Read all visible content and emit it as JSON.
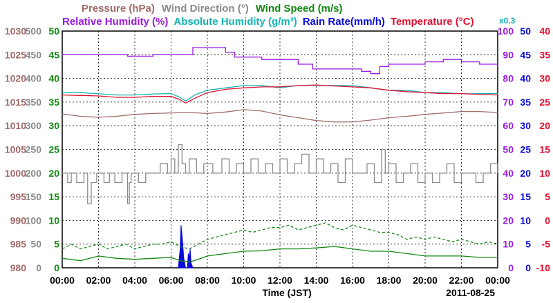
{
  "chart_data": {
    "type": "line",
    "title_parts": [
      {
        "text": "Pressure (hPa)",
        "color": "#a06a6a"
      },
      {
        "text": "Wind Direction (°)",
        "color": "#8a8a8a"
      },
      {
        "text": "Wind Speed (m/s)",
        "color": "#118811"
      }
    ],
    "subtitle_parts": [
      {
        "text": "Relative Humidity (%)",
        "color": "#9a1adf"
      },
      {
        "text": "Absolute Humidity (g/m³)",
        "color": "#14b4b4"
      },
      {
        "text": "Rain Rate(mm/h)",
        "color": "#0a0ad8"
      },
      {
        "text": "Temperature (°C)",
        "color": "#e01030"
      }
    ],
    "rain_scale_note": "x0.3",
    "xlabel": "Time (JST)",
    "date": "2011-08-25",
    "x_ticks": [
      "00:00",
      "02:00",
      "04:00",
      "06:00",
      "08:00",
      "10:00",
      "12:00",
      "14:00",
      "16:00",
      "18:00",
      "20:00",
      "22:00",
      "00:00"
    ],
    "left_axes": [
      {
        "name": "pressure",
        "color": "#a06a6a",
        "ticks": [
          980,
          985,
          990,
          995,
          1000,
          1005,
          1010,
          1015,
          1020,
          1025,
          1030
        ]
      },
      {
        "name": "wind_direction",
        "color": "#8a8a8a",
        "ticks": [
          0,
          50,
          100,
          150,
          200,
          250,
          300,
          350,
          400,
          450,
          500
        ]
      },
      {
        "name": "wind_speed",
        "color": "#118811",
        "ticks": [
          0,
          5,
          10,
          15,
          20,
          25,
          30,
          35,
          40,
          45,
          50
        ]
      }
    ],
    "right_axes": [
      {
        "name": "humidity",
        "color": "#9a1adf",
        "ticks": [
          0,
          10,
          20,
          30,
          40,
          50,
          60,
          70,
          80,
          90,
          100
        ]
      },
      {
        "name": "rain_rate",
        "color": "#0a0ad8",
        "ticks": [
          0,
          5,
          10,
          15,
          20,
          25,
          30,
          35,
          40,
          45,
          50
        ]
      },
      {
        "name": "temperature",
        "color": "#e01030",
        "ticks": [
          -10,
          -5,
          0,
          5,
          10,
          15,
          20,
          25,
          30,
          35,
          40
        ]
      }
    ],
    "series": [
      {
        "key": "relative_humidity",
        "color": "#9a1adf",
        "axis": "humidity",
        "step": true,
        "x": [
          0,
          3.5,
          3.6,
          5,
          6.8,
          7.2,
          8.3,
          9,
          9.5,
          11,
          12,
          13,
          13.8,
          15,
          16,
          16.5,
          17,
          17.5,
          18,
          19,
          20,
          21,
          22,
          23,
          24
        ],
        "y": [
          90,
          90,
          89.4,
          90,
          90,
          93,
          93,
          91,
          89,
          88,
          88,
          86,
          84,
          84,
          84,
          83,
          82,
          85,
          86,
          86,
          87,
          88,
          87,
          86,
          86
        ]
      },
      {
        "key": "absolute_humidity",
        "color": "#14b4b4",
        "axis": "humidity",
        "step": false,
        "x": [
          0,
          1,
          2,
          3,
          4,
          5,
          6,
          6.5,
          6.8,
          7.3,
          8,
          9,
          10,
          11,
          12,
          13,
          14,
          15,
          16,
          17,
          18,
          19,
          20,
          21,
          22,
          23,
          24
        ],
        "y": [
          74,
          74,
          73.5,
          73,
          73,
          73.4,
          73.6,
          72,
          70.4,
          73,
          75,
          76,
          77,
          77,
          76,
          77,
          77,
          77,
          77,
          76,
          75,
          75,
          74,
          74,
          73.5,
          73.6,
          73.6
        ]
      },
      {
        "key": "temperature",
        "color": "#e01030",
        "axis": "temperature",
        "step": false,
        "x": [
          0,
          1,
          2,
          3,
          4,
          5,
          6,
          6.5,
          6.8,
          7.3,
          8,
          9,
          10,
          11,
          12,
          13,
          14,
          15,
          16,
          17,
          18,
          19,
          20,
          21,
          22,
          23,
          24
        ],
        "y": [
          26.5,
          26.4,
          26.3,
          26.0,
          26.0,
          26.2,
          26.2,
          25.5,
          24.8,
          25.8,
          27.0,
          27.7,
          28.0,
          28.2,
          28.2,
          28.5,
          28.6,
          28.4,
          28.2,
          28.0,
          27.5,
          27.2,
          27.0,
          26.8,
          26.8,
          26.6,
          26.5
        ]
      },
      {
        "key": "pressure",
        "color": "#a06a6a",
        "axis": "pressure",
        "step": false,
        "x": [
          0,
          1,
          2,
          3,
          4,
          5,
          6,
          7,
          8,
          9,
          10,
          11,
          12,
          13,
          14,
          15,
          16,
          17,
          18,
          19,
          20,
          21,
          22,
          23,
          24
        ],
        "y": [
          1012.5,
          1012,
          1011.8,
          1012,
          1012.4,
          1012.6,
          1012.7,
          1012.8,
          1012.6,
          1012.9,
          1013.4,
          1013.1,
          1012.3,
          1011.7,
          1011.1,
          1010.8,
          1010.8,
          1011.2,
          1011.7,
          1012,
          1012.4,
          1012.7,
          1013,
          1013,
          1012.8
        ]
      },
      {
        "key": "wind_direction",
        "color": "#8a8a8a",
        "axis": "wind_direction",
        "step": true,
        "x": [
          0,
          0.3,
          0.5,
          0.8,
          1.2,
          1.4,
          1.6,
          1.9,
          2.3,
          2.6,
          2.9,
          3.3,
          3.6,
          3.7,
          3.8,
          4.2,
          4.6,
          5,
          5.4,
          5.8,
          6.0,
          6.2,
          6.4,
          6.6,
          6.8,
          7.0,
          7.4,
          7.8,
          8.3,
          8.8,
          9.2,
          9.6,
          10,
          10.4,
          10.8,
          11.2,
          11.6,
          12,
          12.4,
          12.8,
          13.2,
          13.6,
          14,
          14.4,
          14.8,
          15.2,
          15.6,
          16,
          16.4,
          16.8,
          17.2,
          17.6,
          17.8,
          18,
          18.4,
          18.8,
          19.2,
          19.6,
          20,
          20.4,
          20.8,
          21.2,
          21.6,
          22,
          22.4,
          22.8,
          23.2,
          23.6,
          24
        ],
        "y": [
          200,
          180,
          200,
          180,
          200,
          135,
          180,
          200,
          180,
          200,
          180,
          200,
          135,
          180,
          200,
          180,
          200,
          200,
          220,
          200,
          230,
          200,
          260,
          220,
          200,
          230,
          200,
          220,
          200,
          230,
          200,
          220,
          200,
          230,
          200,
          220,
          200,
          230,
          200,
          220,
          240,
          200,
          230,
          200,
          220,
          180,
          230,
          200,
          200,
          220,
          180,
          250,
          200,
          220,
          180,
          200,
          220,
          180,
          200,
          180,
          200,
          220,
          180,
          200,
          200,
          180,
          200,
          220,
          200
        ]
      },
      {
        "key": "wind_speed_mean",
        "color": "#118811",
        "axis": "wind_speed",
        "step": false,
        "x": [
          0,
          1,
          2,
          3,
          4,
          5,
          6,
          6.5,
          7,
          7.5,
          8,
          9,
          10,
          11,
          12,
          13,
          14,
          15,
          16,
          17,
          18,
          19,
          20,
          21,
          22,
          23,
          24
        ],
        "y": [
          2,
          1.5,
          2.5,
          2,
          1.8,
          2,
          2.2,
          1.5,
          1.2,
          1.8,
          2.5,
          3,
          3.5,
          3.6,
          4,
          4,
          4.2,
          4.5,
          4,
          3.5,
          3.5,
          3,
          2.5,
          2.5,
          2.5,
          2.2,
          2.2
        ]
      },
      {
        "key": "wind_speed_gust",
        "color": "#118811",
        "axis": "wind_speed",
        "step": false,
        "dashed": true,
        "x": [
          0,
          0.5,
          1,
          1.5,
          2,
          2.5,
          3,
          3.5,
          4,
          4.5,
          5,
          5.5,
          6,
          6.5,
          7,
          7.5,
          8,
          8.5,
          9,
          9.5,
          10,
          10.5,
          11,
          11.5,
          12,
          12.5,
          13,
          13.5,
          14,
          14.5,
          15,
          15.5,
          16,
          16.5,
          17,
          17.5,
          18,
          18.5,
          19,
          19.5,
          20,
          20.5,
          21,
          21.5,
          22,
          22.5,
          23,
          23.5,
          24
        ],
        "y": [
          4,
          5,
          4,
          4.5,
          5,
          4,
          4.5,
          5,
          4,
          4.5,
          5,
          5,
          5.5,
          4.5,
          4,
          5,
          6,
          6.5,
          7,
          7.5,
          8,
          7.5,
          8,
          8.5,
          8.5,
          9,
          8,
          8.5,
          9,
          9.5,
          8.5,
          8,
          9,
          8.5,
          8,
          7.5,
          7.5,
          7,
          6,
          6.5,
          6,
          6.5,
          6,
          5.5,
          6,
          5.5,
          5,
          5.5,
          5
        ]
      },
      {
        "key": "rain_rate",
        "color": "#0a0ad8",
        "axis": "rain_rate",
        "step": false,
        "fill": true,
        "x": [
          6.4,
          6.5,
          6.55,
          6.6,
          6.7,
          6.8,
          6.9,
          6.95,
          7.0,
          7.05,
          7.1,
          7.2
        ],
        "y": [
          0,
          4,
          9,
          7,
          2,
          0,
          0,
          3,
          2,
          4,
          1,
          0
        ]
      }
    ]
  }
}
